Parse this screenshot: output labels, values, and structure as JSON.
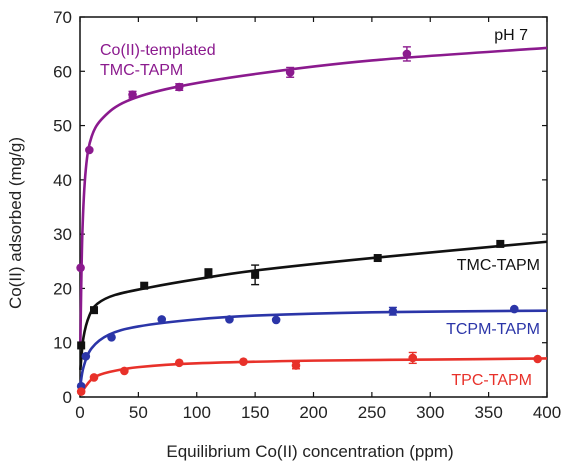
{
  "chart_data": {
    "type": "scatter",
    "title": "",
    "xlabel": "Equilibrium Co(II) concentration (ppm)",
    "ylabel": "Co(II) adsorbed (mg/g)",
    "xlim": [
      0,
      400
    ],
    "ylim": [
      0,
      70
    ],
    "x_ticks": [
      0,
      50,
      100,
      150,
      200,
      250,
      300,
      350,
      400
    ],
    "y_ticks": [
      0,
      10,
      20,
      30,
      40,
      50,
      60,
      70
    ],
    "grid": false,
    "legend": "none",
    "annotation": "pH 7",
    "series": [
      {
        "name": "Co(II)-templated TMC-TAPM",
        "label_lines": [
          "Co(II)-templated",
          "TMC-TAPM"
        ],
        "color": "#8B1A8E",
        "marker": "circle",
        "points": [
          {
            "x": 0.5,
            "y": 23.8
          },
          {
            "x": 8,
            "y": 45.5
          },
          {
            "x": 45,
            "y": 55.7
          },
          {
            "x": 85,
            "y": 57.1
          },
          {
            "x": 180,
            "y": 59.8
          },
          {
            "x": 280,
            "y": 63.2
          }
        ],
        "fit": [
          [
            0.3,
            10
          ],
          [
            2,
            30
          ],
          [
            5,
            42
          ],
          [
            10,
            48
          ],
          [
            20,
            51.5
          ],
          [
            40,
            54.5
          ],
          [
            80,
            57
          ],
          [
            150,
            59.5
          ],
          [
            250,
            62
          ],
          [
            400,
            64.3
          ]
        ]
      },
      {
        "name": "TMC-TAPM",
        "color": "#111111",
        "marker": "square",
        "points": [
          {
            "x": 1,
            "y": 9.5
          },
          {
            "x": 12,
            "y": 16.0
          },
          {
            "x": 55,
            "y": 20.5
          },
          {
            "x": 110,
            "y": 22.8
          },
          {
            "x": 150,
            "y": 22.5
          },
          {
            "x": 255,
            "y": 25.6
          },
          {
            "x": 360,
            "y": 28.2
          }
        ],
        "fit": [
          [
            0.3,
            5
          ],
          [
            3,
            11
          ],
          [
            8,
            15
          ],
          [
            15,
            17.2
          ],
          [
            30,
            18.8
          ],
          [
            60,
            20.2
          ],
          [
            100,
            21.7
          ],
          [
            150,
            23.3
          ],
          [
            250,
            25.6
          ],
          [
            400,
            28.6
          ]
        ]
      },
      {
        "name": "TCPM-TAPM",
        "color": "#2B35A8",
        "marker": "circle",
        "points": [
          {
            "x": 1,
            "y": 2.0
          },
          {
            "x": 5,
            "y": 7.5
          },
          {
            "x": 27,
            "y": 11.0
          },
          {
            "x": 70,
            "y": 14.3
          },
          {
            "x": 128,
            "y": 14.3
          },
          {
            "x": 168,
            "y": 14.2
          },
          {
            "x": 268,
            "y": 15.8
          },
          {
            "x": 372,
            "y": 16.2
          }
        ],
        "fit": [
          [
            0.3,
            2
          ],
          [
            3,
            5.5
          ],
          [
            10,
            9
          ],
          [
            25,
            11.5
          ],
          [
            50,
            13
          ],
          [
            100,
            14.3
          ],
          [
            150,
            15
          ],
          [
            250,
            15.6
          ],
          [
            400,
            15.9
          ]
        ]
      },
      {
        "name": "TPC-TAPM",
        "color": "#E8312A",
        "marker": "circle",
        "points": [
          {
            "x": 1,
            "y": 1.0
          },
          {
            "x": 12,
            "y": 3.6
          },
          {
            "x": 38,
            "y": 4.8
          },
          {
            "x": 85,
            "y": 6.3
          },
          {
            "x": 140,
            "y": 6.5
          },
          {
            "x": 185,
            "y": 5.8
          },
          {
            "x": 285,
            "y": 7.2
          },
          {
            "x": 392,
            "y": 7.0
          }
        ],
        "fit": [
          [
            0.3,
            0.3
          ],
          [
            5,
            2
          ],
          [
            12,
            3.6
          ],
          [
            25,
            4.6
          ],
          [
            50,
            5.5
          ],
          [
            100,
            6.2
          ],
          [
            200,
            6.7
          ],
          [
            300,
            6.9
          ],
          [
            400,
            7.1
          ]
        ]
      }
    ],
    "error_bars": [
      {
        "series": 0,
        "x": 280,
        "y": 63.2,
        "err": 1.3
      },
      {
        "series": 0,
        "x": 180,
        "y": 59.8,
        "err": 0.9
      },
      {
        "series": 0,
        "x": 85,
        "y": 57.1,
        "err": 0.6
      },
      {
        "series": 0,
        "x": 45,
        "y": 55.7,
        "err": 0.6
      },
      {
        "series": 1,
        "x": 150,
        "y": 22.5,
        "err": 1.8
      },
      {
        "series": 1,
        "x": 110,
        "y": 22.8,
        "err": 0.8
      },
      {
        "series": 2,
        "x": 268,
        "y": 15.8,
        "err": 0.7
      },
      {
        "series": 3,
        "x": 285,
        "y": 7.2,
        "err": 1.0
      },
      {
        "series": 3,
        "x": 185,
        "y": 5.8,
        "err": 0.6
      }
    ]
  }
}
